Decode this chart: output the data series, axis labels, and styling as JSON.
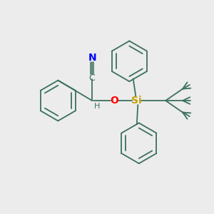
{
  "background_color": "#ececec",
  "bond_color": "#3a7060",
  "N_color": "#0000ff",
  "O_color": "#ff0000",
  "Si_color": "#c8a000",
  "C_color": "#3a7060",
  "H_color": "#3a7060",
  "figsize": [
    3.0,
    3.0
  ],
  "dpi": 100,
  "xlim": [
    0,
    10
  ],
  "ylim": [
    0,
    10
  ]
}
